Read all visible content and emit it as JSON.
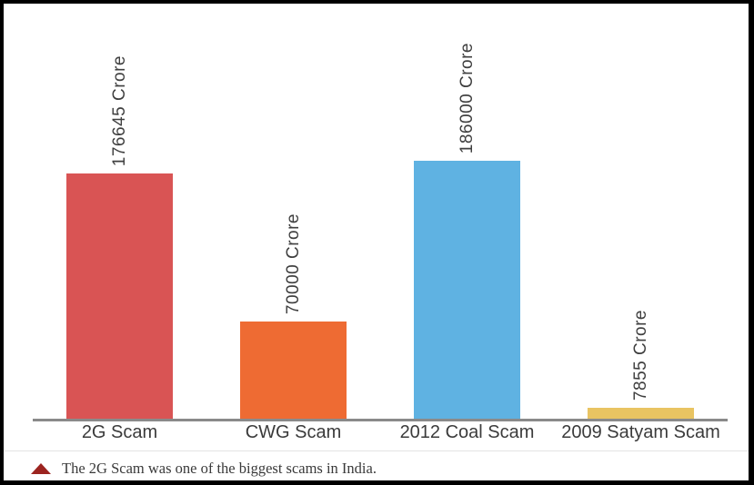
{
  "chart_data": {
    "type": "bar",
    "categories": [
      "2G Scam",
      "CWG Scam",
      "2012 Coal Scam",
      "2009 Satyam Scam"
    ],
    "values": [
      176645,
      70000,
      186000,
      7855
    ],
    "value_labels": [
      "176645 Crore",
      "70000 Crore",
      "186000 Crore",
      "7855 Crore"
    ],
    "bar_colors": [
      "#d95454",
      "#ee6b33",
      "#5fb2e2",
      "#e9c462"
    ],
    "unit": "Crore",
    "title": "",
    "xlabel": "",
    "ylabel": "",
    "ylim": [
      0,
      186000
    ],
    "grid": false,
    "legend": false,
    "axis_color": "#8a8a8a",
    "value_label_color": "#3f3f3f",
    "category_label_color": "#3b3b3b"
  },
  "caption": {
    "text": "The 2G Scam was one of the biggest scams in India.",
    "triangle_color": "#9c2420"
  }
}
